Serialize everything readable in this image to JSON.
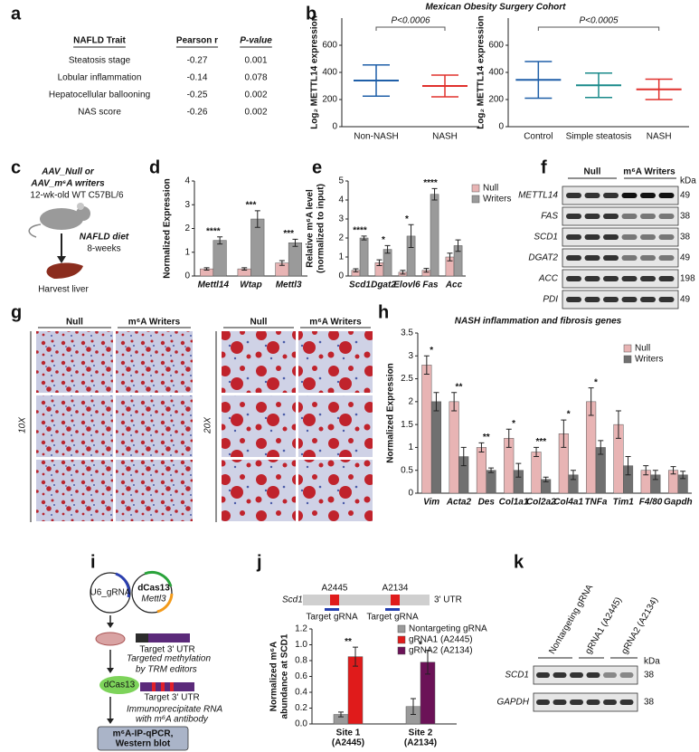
{
  "figure": {
    "labels": [
      "a",
      "b",
      "c",
      "d",
      "e",
      "f",
      "g",
      "h",
      "i",
      "j",
      "k"
    ],
    "cohort_title": "Mexican Obesity Surgery Cohort",
    "table_a": {
      "headers": [
        "NAFLD Trait",
        "Pearson r",
        "P-value"
      ],
      "rows": [
        [
          "Steatosis stage",
          -0.27,
          0.001
        ],
        [
          "Lobular inflammation",
          -0.14,
          0.078
        ],
        [
          "Hepatocellular ballooning",
          -0.25,
          0.002
        ],
        [
          "NAS score",
          -0.26,
          0.002
        ]
      ]
    },
    "diagram_c": {
      "control": "AAV_Null or",
      "writers": "AAV_m⁶A writers",
      "mice": "12-wk-old WT C57BL/6",
      "diet": "NAFLD diet",
      "duration": "8-weeks",
      "endpoint": "Harvest liver"
    },
    "blot_f": {
      "groups": [
        "Null",
        "m⁶A Writers"
      ],
      "unit": "kDa",
      "rows": [
        [
          "METTL14",
          49
        ],
        [
          "FAS",
          38
        ],
        [
          "SCD1",
          38
        ],
        [
          "DGAT2",
          49
        ],
        [
          "ACC",
          198
        ],
        [
          "PDI",
          49
        ]
      ]
    },
    "micro_g": {
      "groups": [
        "Null",
        "m⁶A Writers"
      ],
      "magnifications": [
        "10X",
        "20X"
      ]
    },
    "diagram_i": {
      "guide": "U6_gRNA",
      "effector": "dCas13",
      "effector_gene": "Mettl3",
      "target": "Target 3' UTR",
      "step1": [
        "Targeted methylation",
        "by TRM editors"
      ],
      "protein": "dCas13",
      "step2": [
        "Immunoprecipitate RNA",
        "with m⁶A antibody"
      ],
      "readout": [
        "m⁶A-IP-qPCR,",
        "Western blot"
      ]
    },
    "diagram_j": {
      "gene": "Scd1",
      "sites": [
        "A2445",
        "A2134"
      ],
      "region": "3' UTR",
      "guides": [
        "Target gRNA",
        "Target gRNA"
      ]
    },
    "blot_k": {
      "lanes": [
        "Nontargeting gRNA",
        "gRNA1 (A2445)",
        "gRNA2 (A2134)"
      ],
      "unit": "kDa",
      "rows": [
        [
          "SCD1",
          38
        ],
        [
          "GAPDH",
          38
        ]
      ]
    }
  },
  "chart_data": [
    {
      "type": "dot",
      "ylabel": "Log₂ METTL14 expression",
      "categories": [
        "Non-NASH",
        "NASH"
      ],
      "colors": [
        "#1f5fa8",
        "#e0302c"
      ],
      "means": [
        340,
        300
      ],
      "sd": [
        115,
        80
      ],
      "ylim": [
        0,
        800
      ],
      "yticks": [
        0,
        200,
        400,
        600
      ],
      "annotation": "P<0.0006"
    },
    {
      "type": "dot",
      "ylabel": "Log₂ METTL14 expression",
      "categories": [
        "Control",
        "Simple steatosis",
        "NASH"
      ],
      "colors": [
        "#1f5fa8",
        "#1a8a8a",
        "#e0302c"
      ],
      "means": [
        345,
        305,
        275
      ],
      "sd": [
        135,
        90,
        75
      ],
      "ylim": [
        0,
        800
      ],
      "yticks": [
        0,
        200,
        400,
        600
      ],
      "annotation": "P<0.0005"
    },
    {
      "type": "bar",
      "ylabel": "Normalized Expression",
      "categories": [
        "Mettl14",
        "Wtap",
        "Mettl3"
      ],
      "series": [
        {
          "color": "#e8b4b4",
          "values": [
            0.3,
            0.3,
            0.55
          ],
          "errors": [
            0.05,
            0.05,
            0.1
          ]
        },
        {
          "color": "#9a9a9a",
          "values": [
            1.5,
            2.4,
            1.4
          ],
          "errors": [
            0.15,
            0.35,
            0.15
          ]
        }
      ],
      "annotations": [
        "****",
        "***",
        "***"
      ],
      "ylim": [
        0,
        4
      ],
      "yticks": [
        0,
        1,
        2,
        3,
        4
      ],
      "legend": false
    },
    {
      "type": "bar",
      "ylabel": [
        "Relative m⁶A level",
        "(normalized to input)"
      ],
      "categories": [
        "Scd1",
        "Dgat2",
        "Elovl6",
        "Fas",
        "Acc"
      ],
      "series": [
        {
          "name": "Null",
          "color": "#e8b4b4",
          "values": [
            0.3,
            0.7,
            0.2,
            0.3,
            1.0
          ],
          "errors": [
            0.08,
            0.15,
            0.1,
            0.1,
            0.2
          ]
        },
        {
          "name": "Writers",
          "color": "#9a9a9a",
          "values": [
            2.0,
            1.4,
            2.1,
            4.3,
            1.6
          ],
          "errors": [
            0.1,
            0.2,
            0.6,
            0.3,
            0.3
          ]
        }
      ],
      "annotations": [
        "****",
        "*",
        "*",
        "****",
        null
      ],
      "ylim": [
        0,
        5
      ],
      "yticks": [
        0,
        1,
        2,
        3,
        4,
        5
      ],
      "legend": true
    },
    {
      "type": "bar",
      "title": "NASH inflammation and fibrosis genes",
      "ylabel": "Normalized Expression",
      "categories": [
        "Vim",
        "Acta2",
        "Des",
        "Col1a1",
        "Col2a2",
        "Col4a1",
        "TNFa",
        "Tim1",
        "F4/80",
        "Gapdh"
      ],
      "series": [
        {
          "name": "Null",
          "color": "#e8b4b4",
          "values": [
            2.8,
            2.0,
            1.0,
            1.2,
            0.9,
            1.3,
            2.0,
            1.5,
            0.5,
            0.5
          ],
          "errors": [
            0.2,
            0.2,
            0.1,
            0.2,
            0.1,
            0.3,
            0.3,
            0.3,
            0.1,
            0.08
          ]
        },
        {
          "name": "Writers",
          "color": "#707070",
          "values": [
            2.0,
            0.8,
            0.5,
            0.5,
            0.3,
            0.4,
            1.0,
            0.6,
            0.4,
            0.4
          ],
          "errors": [
            0.2,
            0.2,
            0.05,
            0.15,
            0.05,
            0.1,
            0.15,
            0.2,
            0.1,
            0.08
          ]
        }
      ],
      "annotations": [
        "*",
        "**",
        "**",
        "*",
        "***",
        "*",
        "*",
        null,
        null,
        null
      ],
      "ylim": [
        0,
        3.5
      ],
      "yticks": [
        0,
        0.5,
        1,
        1.5,
        2,
        2.5,
        3,
        3.5
      ],
      "legend": true
    },
    {
      "type": "bar",
      "ylabel": [
        "Normalized m⁶A",
        "abundance at SCD1"
      ],
      "categories": [
        [
          "Site 1",
          "(A2445)"
        ],
        [
          "Site 2",
          "(A2134)"
        ]
      ],
      "series": [
        {
          "name": "Nontargeting gRNA",
          "color": "#9a9a9a",
          "values": [
            0.12,
            0.22
          ],
          "errors": [
            0.03,
            0.1
          ]
        },
        {
          "name": "gRNA1 (A2445)",
          "color": "#e01b1b",
          "values": [
            0.85,
            null
          ],
          "errors": [
            0.12,
            null
          ]
        },
        {
          "name": "gRNA2 (A2134)",
          "color": "#6b1257",
          "values": [
            null,
            0.78
          ],
          "errors": [
            null,
            0.15
          ]
        }
      ],
      "annotations": [
        "**",
        "*"
      ],
      "ylim": [
        0,
        1.2
      ],
      "yticks": [
        {
          "value": 0,
          "label": "0.0"
        },
        0.2,
        0.4,
        0.6,
        0.8,
        {
          "value": 1,
          "label": "1.0"
        },
        1.2
      ],
      "legend": true
    }
  ]
}
